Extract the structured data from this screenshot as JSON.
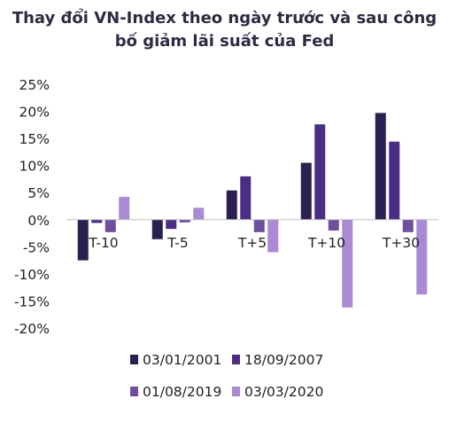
{
  "chart_data": {
    "type": "bar",
    "title_line1": "Thay đổi VN-Index theo ngày trước và sau công",
    "title_line2": "bố giảm lãi suất của Fed",
    "categories": [
      "T-10",
      "T-5",
      "T+5",
      "T+10",
      "T+30"
    ],
    "series": [
      {
        "name": "03/01/2001",
        "color": "#2a1f4e",
        "values": [
          -7.5,
          -3.6,
          5.4,
          10.5,
          19.7
        ]
      },
      {
        "name": "18/09/2007",
        "color": "#4b2e83",
        "values": [
          -0.6,
          -1.7,
          8.0,
          17.6,
          14.4
        ]
      },
      {
        "name": "01/08/2019",
        "color": "#6f4e9e",
        "values": [
          -2.3,
          -0.5,
          -2.3,
          -2.0,
          -2.3
        ]
      },
      {
        "name": "03/03/2020",
        "color": "#a98ad3",
        "values": [
          4.2,
          2.2,
          -6.0,
          -16.2,
          -13.8
        ]
      }
    ],
    "y_ticks": [
      "25%",
      "20%",
      "15%",
      "10%",
      "5%",
      "0%",
      "-5%",
      "-10%",
      "-15%",
      "-20%"
    ],
    "ylim": [
      -20,
      25
    ],
    "grid": false,
    "legend_position": "bottom"
  }
}
